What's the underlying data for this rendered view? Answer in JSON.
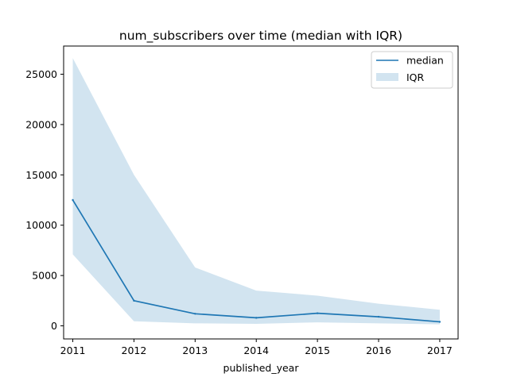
{
  "chart_data": {
    "type": "line",
    "title": "num_subscribers over time (median with IQR)",
    "xlabel": "published_year",
    "ylabel": "",
    "x": [
      2011,
      2012,
      2013,
      2014,
      2015,
      2016,
      2017
    ],
    "xticks": [
      "2011",
      "2012",
      "2013",
      "2014",
      "2015",
      "2016",
      "2017"
    ],
    "yticks": [
      "0",
      "5000",
      "10000",
      "15000",
      "20000",
      "25000"
    ],
    "ylim": [
      -1300,
      27800
    ],
    "xlim": [
      2010.85,
      2017.3
    ],
    "series": [
      {
        "name": "median",
        "type": "line",
        "color": "#1f77b4",
        "values": [
          12500,
          2500,
          1200,
          800,
          1250,
          900,
          400
        ]
      }
    ],
    "band": {
      "name": "IQR",
      "color": "#1f77b4",
      "alpha": 0.2,
      "lower": [
        7100,
        450,
        250,
        200,
        350,
        250,
        150
      ],
      "upper": [
        26600,
        15000,
        5800,
        3500,
        3000,
        2200,
        1600
      ]
    },
    "legend": {
      "placement": "top-right",
      "entries": [
        "median",
        "IQR"
      ]
    },
    "grid": false
  }
}
